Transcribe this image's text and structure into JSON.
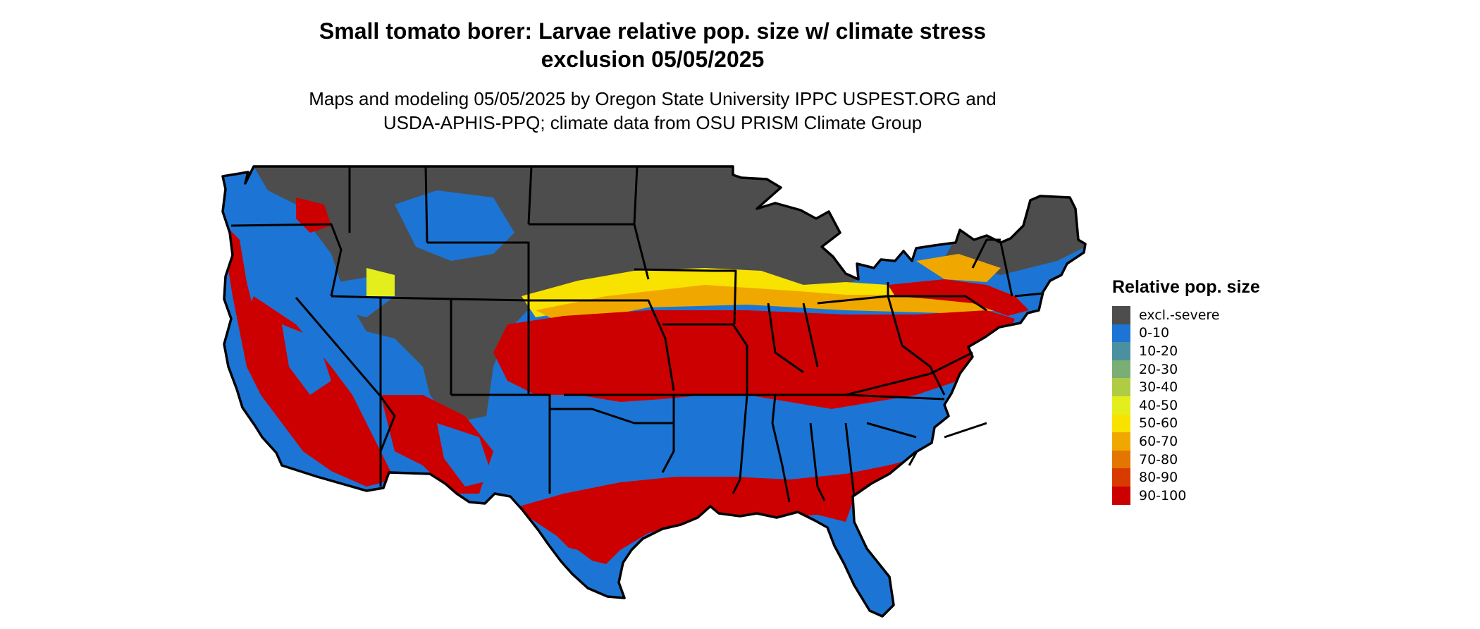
{
  "title": {
    "line1": "Small tomato borer: Larvae relative pop. size w/ climate stress",
    "line2": "exclusion 05/05/2025"
  },
  "subtitle": {
    "line1": "Maps and modeling 05/05/2025 by Oregon State University IPPC USPEST.ORG and",
    "line2": "USDA-APHIS-PPQ; climate data from OSU PRISM Climate Group"
  },
  "legend": {
    "title": "Relative pop. size",
    "items": [
      {
        "label": "excl.-severe",
        "color": "#4d4d4d"
      },
      {
        "label": "0-10",
        "color": "#1c75d4"
      },
      {
        "label": "10-20",
        "color": "#4a90a0"
      },
      {
        "label": "20-30",
        "color": "#7aae74"
      },
      {
        "label": "30-40",
        "color": "#b0cc44"
      },
      {
        "label": "40-50",
        "color": "#e4ee1c"
      },
      {
        "label": "50-60",
        "color": "#f8e200"
      },
      {
        "label": "60-70",
        "color": "#f0a800"
      },
      {
        "label": "70-80",
        "color": "#e27600"
      },
      {
        "label": "80-90",
        "color": "#d93a00"
      },
      {
        "label": "90-100",
        "color": "#cc0000"
      }
    ]
  }
}
